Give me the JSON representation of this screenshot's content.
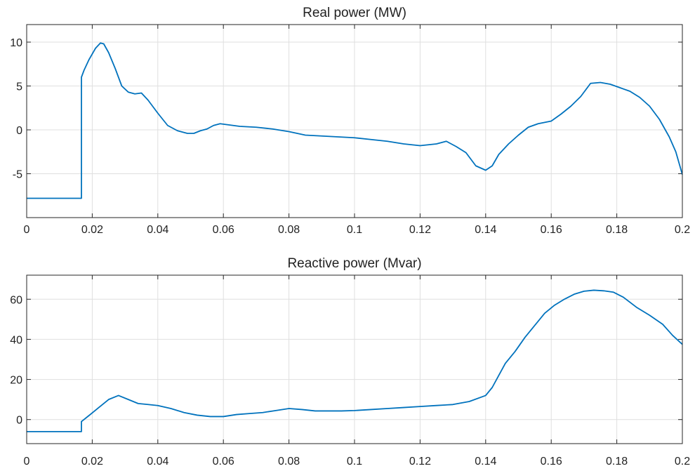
{
  "chart_data": [
    {
      "type": "line",
      "title": "Real power (MW)",
      "xlabel": "",
      "ylabel": "",
      "xlim": [
        0,
        0.2
      ],
      "ylim": [
        -10,
        12
      ],
      "grid": true,
      "xticks": [
        0,
        0.02,
        0.04,
        0.06,
        0.08,
        0.1,
        0.12,
        0.14,
        0.16,
        0.18,
        0.2
      ],
      "xtick_labels": [
        "0",
        "0.02",
        "0.04",
        "0.06",
        "0.08",
        "0.1",
        "0.12",
        "0.14",
        "0.16",
        "0.18",
        "0.2"
      ],
      "yticks": [
        10,
        5,
        0,
        -5
      ],
      "ytick_labels": [
        "10",
        "5",
        "0",
        "-5"
      ],
      "color": "#0072bd",
      "series": [
        {
          "x": [
            0,
            0.0167,
            0.0167,
            0.0175,
            0.019,
            0.021,
            0.0225,
            0.0235,
            0.025,
            0.027,
            0.029,
            0.031,
            0.033,
            0.035,
            0.037,
            0.04,
            0.043,
            0.046,
            0.049,
            0.051,
            0.053,
            0.055,
            0.057,
            0.059,
            0.061,
            0.065,
            0.07,
            0.075,
            0.08,
            0.085,
            0.09,
            0.095,
            0.1,
            0.105,
            0.11,
            0.115,
            0.12,
            0.125,
            0.128,
            0.131,
            0.134,
            0.137,
            0.14,
            0.142,
            0.144,
            0.147,
            0.15,
            0.153,
            0.156,
            0.16,
            0.163,
            0.166,
            0.169,
            0.172,
            0.175,
            0.178,
            0.181,
            0.184,
            0.187,
            0.19,
            0.193,
            0.196,
            0.198,
            0.2
          ],
          "values": [
            -7.8,
            -7.8,
            6.0,
            6.8,
            8.0,
            9.3,
            9.9,
            9.8,
            8.8,
            7.0,
            5.0,
            4.3,
            4.1,
            4.2,
            3.4,
            1.9,
            0.5,
            -0.1,
            -0.4,
            -0.4,
            -0.1,
            0.1,
            0.5,
            0.7,
            0.6,
            0.4,
            0.3,
            0.1,
            -0.2,
            -0.6,
            -0.7,
            -0.8,
            -0.9,
            -1.1,
            -1.3,
            -1.6,
            -1.8,
            -1.6,
            -1.3,
            -1.9,
            -2.6,
            -4.1,
            -4.6,
            -4.1,
            -2.8,
            -1.6,
            -0.6,
            0.3,
            0.7,
            1.0,
            1.8,
            2.7,
            3.8,
            5.3,
            5.4,
            5.2,
            4.8,
            4.4,
            3.7,
            2.7,
            1.2,
            -0.8,
            -2.5,
            -5.1
          ]
        }
      ]
    },
    {
      "type": "line",
      "title": "Reactive power (Mvar)",
      "xlabel": "",
      "ylabel": "",
      "xlim": [
        0,
        0.2
      ],
      "ylim": [
        -12,
        72
      ],
      "grid": true,
      "xticks": [
        0,
        0.02,
        0.04,
        0.06,
        0.08,
        0.1,
        0.12,
        0.14,
        0.16,
        0.18,
        0.2
      ],
      "xtick_labels": [
        "0",
        "0.02",
        "0.04",
        "0.06",
        "0.08",
        "0.1",
        "0.12",
        "0.14",
        "0.16",
        "0.18",
        "0.2"
      ],
      "yticks": [
        60,
        40,
        20,
        0
      ],
      "ytick_labels": [
        "60",
        "40",
        "20",
        "0"
      ],
      "color": "#0072bd",
      "series": [
        {
          "x": [
            0,
            0.0167,
            0.0167,
            0.019,
            0.022,
            0.025,
            0.028,
            0.031,
            0.034,
            0.037,
            0.04,
            0.044,
            0.048,
            0.052,
            0.056,
            0.06,
            0.064,
            0.068,
            0.072,
            0.076,
            0.08,
            0.084,
            0.088,
            0.092,
            0.096,
            0.1,
            0.105,
            0.11,
            0.115,
            0.12,
            0.125,
            0.13,
            0.135,
            0.14,
            0.142,
            0.144,
            0.146,
            0.149,
            0.152,
            0.155,
            0.158,
            0.161,
            0.164,
            0.167,
            0.17,
            0.173,
            0.176,
            0.179,
            0.182,
            0.186,
            0.19,
            0.194,
            0.197,
            0.2
          ],
          "values": [
            -6,
            -6,
            -1,
            2,
            6,
            10,
            12,
            10,
            8,
            7.5,
            7,
            5.5,
            3.5,
            2.2,
            1.5,
            1.5,
            2.5,
            3,
            3.5,
            4.5,
            5.5,
            5,
            4.3,
            4.3,
            4.3,
            4.5,
            5,
            5.5,
            6,
            6.5,
            7,
            7.5,
            9,
            12,
            16,
            22,
            28,
            34,
            41,
            47,
            53,
            57,
            60,
            62.5,
            64,
            64.5,
            64.2,
            63.5,
            61,
            56,
            52,
            47.5,
            42,
            37.5
          ]
        }
      ]
    }
  ]
}
